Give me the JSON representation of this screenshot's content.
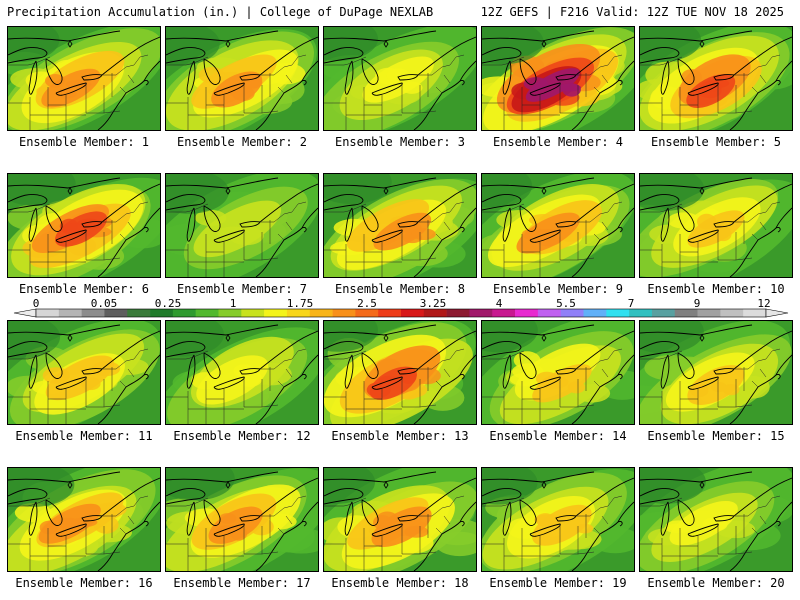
{
  "header": {
    "left": "Precipitation Accumulation (in.) | College of DuPage NEXLAB",
    "right": "12Z GEFS | F216 Valid: 12Z TUE NOV 18 2025"
  },
  "panel_label_prefix": "Ensemble Member: ",
  "panels": [
    {
      "member": "1",
      "intensity": 0.55
    },
    {
      "member": "2",
      "intensity": 0.55
    },
    {
      "member": "3",
      "intensity": 0.35
    },
    {
      "member": "4",
      "intensity": 0.85
    },
    {
      "member": "5",
      "intensity": 0.7
    },
    {
      "member": "6",
      "intensity": 0.65
    },
    {
      "member": "7",
      "intensity": 0.3
    },
    {
      "member": "8",
      "intensity": 0.6
    },
    {
      "member": "9",
      "intensity": 0.6
    },
    {
      "member": "10",
      "intensity": 0.5
    },
    {
      "member": "11",
      "intensity": 0.5
    },
    {
      "member": "12",
      "intensity": 0.4
    },
    {
      "member": "13",
      "intensity": 0.65
    },
    {
      "member": "14",
      "intensity": 0.5
    },
    {
      "member": "15",
      "intensity": 0.45
    },
    {
      "member": "16",
      "intensity": 0.6
    },
    {
      "member": "17",
      "intensity": 0.6
    },
    {
      "member": "18",
      "intensity": 0.55
    },
    {
      "member": "19",
      "intensity": 0.5
    },
    {
      "member": "20",
      "intensity": 0.4
    }
  ],
  "colorbar": {
    "tick_labels": [
      "0",
      "0.05",
      "0.25",
      "1",
      "1.75",
      "2.5",
      "3.25",
      "4",
      "5.5",
      "7",
      "9",
      "12"
    ],
    "colors": [
      "#d6d6d6",
      "#b4b4b4",
      "#8c8c8c",
      "#5e5e5e",
      "#3a7a3a",
      "#1f7a2a",
      "#2f9a2f",
      "#52b82e",
      "#86cc2a",
      "#c8e21e",
      "#f4f41a",
      "#f8d61a",
      "#f8b418",
      "#f8901a",
      "#f46a1a",
      "#ee3c18",
      "#d81818",
      "#b01818",
      "#8c1a30",
      "#a0186a",
      "#c81890",
      "#e82ad0",
      "#c060f0",
      "#9080f8",
      "#60b0f8",
      "#30e0f0",
      "#30c0c0",
      "#58a0a0",
      "#808080",
      "#a0a0a0",
      "#c0c0c0",
      "#dcdcdc"
    ]
  },
  "map_colors": {
    "base": "#3a9a2a",
    "levels": [
      "#52b82e",
      "#86cc2a",
      "#c8e21e",
      "#f4f41a",
      "#f8c418",
      "#f8901a",
      "#ee4818",
      "#c81818",
      "#a0186a",
      "#e82ad0"
    ]
  }
}
